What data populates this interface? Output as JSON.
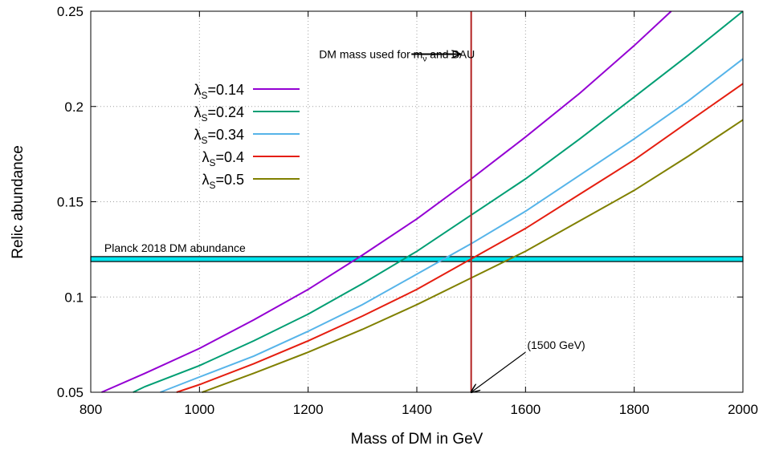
{
  "chart_data": {
    "type": "line",
    "xlabel": "Mass of DM in GeV",
    "ylabel": "Relic abundance",
    "xlim": [
      800,
      2000
    ],
    "ylim": [
      0.05,
      0.25
    ],
    "xticks": [
      800,
      1000,
      1200,
      1400,
      1600,
      1800,
      2000
    ],
    "yticks": [
      0.05,
      0.1,
      0.15,
      0.2,
      0.25
    ],
    "xtick_labels": [
      "800",
      "1000",
      "1200",
      "1400",
      "1600",
      "1800",
      "2000"
    ],
    "ytick_labels": [
      "0.05",
      "0.1",
      "0.15",
      "0.2",
      "0.25"
    ],
    "grid": true,
    "legend_position": "upper-left",
    "series": [
      {
        "name": "λS=0.14",
        "legend_base": "λ",
        "legend_sub": "S",
        "legend_value": "=0.14",
        "color": "#9400d3",
        "x": [
          820,
          900,
          1000,
          1100,
          1200,
          1300,
          1400,
          1500,
          1600,
          1700,
          1800,
          1868
        ],
        "y": [
          0.05,
          0.06,
          0.073,
          0.088,
          0.104,
          0.122,
          0.141,
          0.162,
          0.184,
          0.207,
          0.232,
          0.25
        ]
      },
      {
        "name": "λS=0.24",
        "legend_base": "λ",
        "legend_sub": "S",
        "legend_value": "=0.24",
        "color": "#009e73",
        "x": [
          878,
          900,
          1000,
          1100,
          1200,
          1300,
          1400,
          1500,
          1600,
          1700,
          1800,
          1900,
          2000
        ],
        "y": [
          0.05,
          0.053,
          0.064,
          0.077,
          0.091,
          0.107,
          0.124,
          0.143,
          0.162,
          0.183,
          0.205,
          0.227,
          0.25
        ]
      },
      {
        "name": "λS=0.34",
        "legend_base": "λ",
        "legend_sub": "S",
        "legend_value": "=0.34",
        "color": "#56b4e9",
        "x": [
          928,
          1000,
          1100,
          1200,
          1300,
          1400,
          1500,
          1600,
          1700,
          1800,
          1900,
          2000
        ],
        "y": [
          0.05,
          0.058,
          0.069,
          0.082,
          0.096,
          0.112,
          0.128,
          0.145,
          0.164,
          0.183,
          0.203,
          0.225
        ]
      },
      {
        "name": "λS=0.4",
        "legend_base": "λ",
        "legend_sub": "S",
        "legend_value": "=0.4",
        "color": "#e51e10",
        "x": [
          958,
          1000,
          1100,
          1200,
          1300,
          1400,
          1500,
          1600,
          1700,
          1800,
          1900,
          2000
        ],
        "y": [
          0.05,
          0.054,
          0.065,
          0.077,
          0.09,
          0.104,
          0.12,
          0.136,
          0.154,
          0.172,
          0.192,
          0.212
        ]
      },
      {
        "name": "λS=0.5",
        "legend_base": "λ",
        "legend_sub": "S",
        "legend_value": "=0.5",
        "color": "#808000",
        "x": [
          1005,
          1100,
          1200,
          1300,
          1400,
          1500,
          1600,
          1700,
          1800,
          1900,
          2000
        ],
        "y": [
          0.05,
          0.06,
          0.071,
          0.083,
          0.096,
          0.11,
          0.124,
          0.14,
          0.156,
          0.174,
          0.193
        ]
      }
    ],
    "planck_band": {
      "label": "Planck 2018 DM abundance",
      "y_low": 0.1186,
      "y_high": 0.1212,
      "fill_color": "#00e5ee",
      "edge_color": "#000000"
    },
    "vertical_line": {
      "x": 1500,
      "color": "#b22222"
    },
    "annotations": [
      {
        "id": "dm-mass",
        "text_before": "DM mass used for m",
        "text_sub": "ν",
        "text_after": " and BAU",
        "text_x": 1220,
        "text_y": 0.2275,
        "arrow_from": [
          1390,
          0.2275
        ],
        "arrow_to": [
          1480,
          0.2275
        ]
      },
      {
        "id": "mass-1500",
        "text": "(1500 GeV)",
        "text_x": 1600,
        "text_y": 0.072,
        "arrow_from": [
          1600,
          0.071
        ],
        "arrow_to": [
          1500,
          0.05
        ]
      }
    ]
  }
}
